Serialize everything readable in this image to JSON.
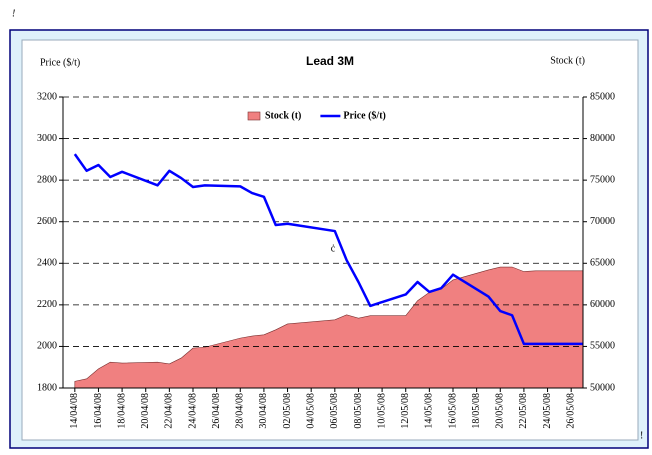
{
  "chart_data": {
    "type": "line_area_dual",
    "title": "Lead 3M",
    "y_label": "Price ($/t)",
    "y2_label": "Stock (t)",
    "annotations": [
      "!",
      "ċ",
      "!"
    ],
    "x": [
      "14/04/08",
      "15/04/08",
      "16/04/08",
      "17/04/08",
      "18/04/08",
      "21/04/08",
      "22/04/08",
      "23/04/08",
      "24/04/08",
      "25/04/08",
      "28/04/08",
      "29/04/08",
      "30/04/08",
      "01/05/08",
      "02/05/08",
      "06/05/08",
      "07/05/08",
      "08/05/08",
      "09/05/08",
      "12/05/08",
      "13/05/08",
      "14/05/08",
      "15/05/08",
      "16/05/08",
      "19/05/08",
      "20/05/08",
      "21/05/08",
      "22/05/08",
      "23/05/08",
      "26/05/08",
      "27/05/08"
    ],
    "xlim": [
      "13/04/08",
      "27/05/08"
    ],
    "xticks": [
      "14/04/08",
      "16/04/08",
      "18/04/08",
      "20/04/08",
      "22/04/08",
      "24/04/08",
      "26/04/08",
      "28/04/08",
      "30/04/08",
      "02/05/08",
      "04/05/08",
      "06/05/08",
      "08/05/08",
      "10/05/08",
      "12/05/08",
      "14/05/08",
      "16/05/08",
      "18/05/08",
      "20/05/08",
      "22/05/08",
      "24/05/08",
      "26/05/08"
    ],
    "series": [
      {
        "name": "Stock (t)",
        "kind": "area",
        "axis": "y2",
        "color": "#f08080",
        "values": [
          50800,
          51100,
          52300,
          53100,
          53000,
          53100,
          52900,
          53600,
          54800,
          54900,
          56000,
          56250,
          56400,
          57000,
          57700,
          58200,
          58800,
          58400,
          58700,
          58700,
          60500,
          61500,
          61900,
          63000,
          64200,
          64550,
          64550,
          64000,
          64100,
          64100,
          64100
        ]
      },
      {
        "name": "Price ($/t)",
        "kind": "line",
        "axis": "y",
        "color": "#0000ff",
        "values": [
          2925,
          2845,
          2873,
          2815,
          2840,
          2775,
          2845,
          2810,
          2767,
          2775,
          2770,
          2738,
          2720,
          2584,
          2590,
          2555,
          2415,
          2310,
          2195,
          2250,
          2310,
          2262,
          2280,
          2345,
          2240,
          2170,
          2150,
          2012,
          2012,
          2012,
          2012
        ]
      }
    ],
    "ylim": [
      1800,
      3200
    ],
    "yticks": [
      1800,
      2000,
      2200,
      2400,
      2600,
      2800,
      3000,
      3200
    ],
    "y2lim": [
      50000,
      85000
    ],
    "y2ticks": [
      50000,
      55000,
      60000,
      65000,
      70000,
      75000,
      80000,
      85000
    ],
    "grid": true,
    "legend": "top"
  }
}
